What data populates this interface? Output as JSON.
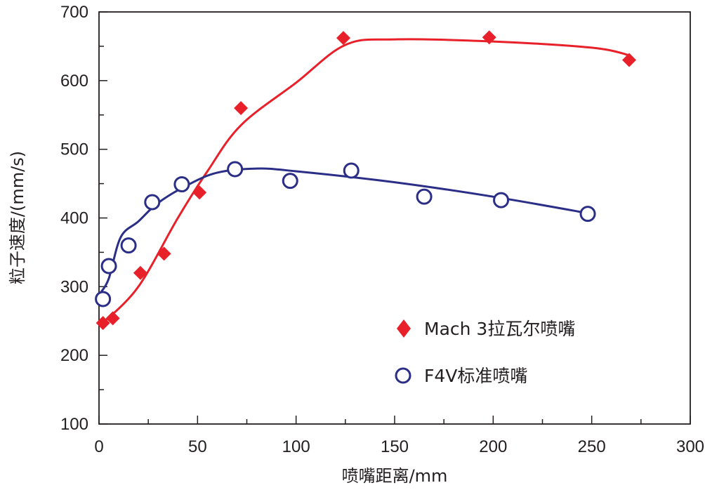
{
  "chart_data": {
    "type": "scatter",
    "xlabel": "喷嘴距离/mm",
    "ylabel": "粒子速度/(mm/s)",
    "xlim": [
      0,
      300
    ],
    "ylim": [
      100,
      700
    ],
    "xticks": [
      "0",
      "50",
      "100",
      "150",
      "200",
      "250",
      "300"
    ],
    "yticks": [
      "100",
      "200",
      "300",
      "400",
      "500",
      "600",
      "700"
    ],
    "grid": false,
    "legend": "lower-right",
    "series": [
      {
        "name": "Mach 3拉瓦尔喷嘴",
        "marker": "filled-diamond",
        "color": "#e8202a",
        "points": [
          {
            "x": 2,
            "y": 247
          },
          {
            "x": 7,
            "y": 254
          },
          {
            "x": 21,
            "y": 320
          },
          {
            "x": 33,
            "y": 348
          },
          {
            "x": 51,
            "y": 437
          },
          {
            "x": 72,
            "y": 560
          },
          {
            "x": 124,
            "y": 662
          },
          {
            "x": 198,
            "y": 663
          },
          {
            "x": 269,
            "y": 630
          }
        ],
        "fit": [
          {
            "x": 2,
            "y": 247
          },
          {
            "x": 20,
            "y": 300
          },
          {
            "x": 40,
            "y": 400
          },
          {
            "x": 55,
            "y": 468
          },
          {
            "x": 72,
            "y": 535
          },
          {
            "x": 100,
            "y": 597
          },
          {
            "x": 125,
            "y": 652
          },
          {
            "x": 150,
            "y": 660
          },
          {
            "x": 200,
            "y": 657
          },
          {
            "x": 250,
            "y": 648
          },
          {
            "x": 269,
            "y": 637
          }
        ]
      },
      {
        "name": "F4V标准喷嘴",
        "marker": "open-circle",
        "color": "#2b2e86",
        "points": [
          {
            "x": 2,
            "y": 282
          },
          {
            "x": 5,
            "y": 330
          },
          {
            "x": 15,
            "y": 360
          },
          {
            "x": 27,
            "y": 423
          },
          {
            "x": 42,
            "y": 449
          },
          {
            "x": 69,
            "y": 471
          },
          {
            "x": 97,
            "y": 454
          },
          {
            "x": 128,
            "y": 469
          },
          {
            "x": 165,
            "y": 431
          },
          {
            "x": 204,
            "y": 426
          },
          {
            "x": 248,
            "y": 406
          }
        ],
        "fit": [
          {
            "x": 1,
            "y": 292
          },
          {
            "x": 5,
            "y": 312
          },
          {
            "x": 11,
            "y": 372
          },
          {
            "x": 20,
            "y": 395
          },
          {
            "x": 30,
            "y": 422
          },
          {
            "x": 45,
            "y": 448
          },
          {
            "x": 60,
            "y": 466
          },
          {
            "x": 80,
            "y": 472
          },
          {
            "x": 100,
            "y": 468
          },
          {
            "x": 150,
            "y": 452
          },
          {
            "x": 200,
            "y": 431
          },
          {
            "x": 248,
            "y": 407
          }
        ]
      }
    ]
  }
}
